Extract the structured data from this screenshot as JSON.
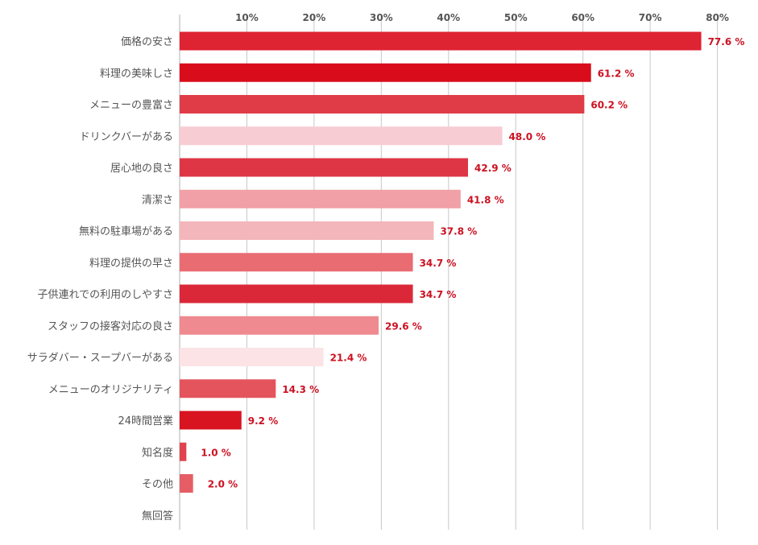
{
  "chart_data": {
    "type": "bar",
    "orientation": "horizontal",
    "title": "",
    "xlabel": "",
    "ylabel": "",
    "xlim": [
      0,
      80
    ],
    "grid": true,
    "legend": "none",
    "ticks": [
      "10%",
      "20%",
      "30%",
      "40%",
      "50%",
      "60%",
      "70%",
      "80%"
    ],
    "tick_values": [
      10,
      20,
      30,
      40,
      50,
      60,
      70,
      80
    ],
    "value_suffix": " %",
    "categories": [
      "価格の安さ",
      "料理の美味しさ",
      "メニューの豊富さ",
      "ドリンクバーがある",
      "居心地の良さ",
      "清潔さ",
      "無料の駐車場がある",
      "料理の提供の早さ",
      "子供連れでの利用のしやすさ",
      "スタッフの接客対応の良さ",
      "サラダバー・スープバーがある",
      "メニューのオリジナリティ",
      "24時間営業",
      "知名度",
      "その他",
      "無回答"
    ],
    "values": [
      77.6,
      61.2,
      60.2,
      48.0,
      42.9,
      41.8,
      37.8,
      34.7,
      34.7,
      29.6,
      21.4,
      14.3,
      9.2,
      1.0,
      2.0,
      null
    ],
    "value_labels": [
      "77.6 %",
      "61.2 %",
      "60.2 %",
      "48.0 %",
      "42.9 %",
      "41.8 %",
      "37.8 %",
      "34.7 %",
      "34.7 %",
      "29.6 %",
      "21.4 %",
      "14.3 %",
      "9.2 %",
      "1.0 %",
      "2.0 %",
      ""
    ],
    "colors": [
      "#de2333",
      "#d90c1b",
      "#e03c48",
      "#f7ccd2",
      "#de3644",
      "#f0a0a6",
      "#f3b6ba",
      "#ea6c73",
      "#db2838",
      "#ee8a90",
      "#fbe3e6",
      "#e4545d",
      "#d71420",
      "#e1434e",
      "#e55e66",
      "#ffffff"
    ],
    "gridline_color": "#c8c8c8",
    "label_color": "#cc1122"
  }
}
